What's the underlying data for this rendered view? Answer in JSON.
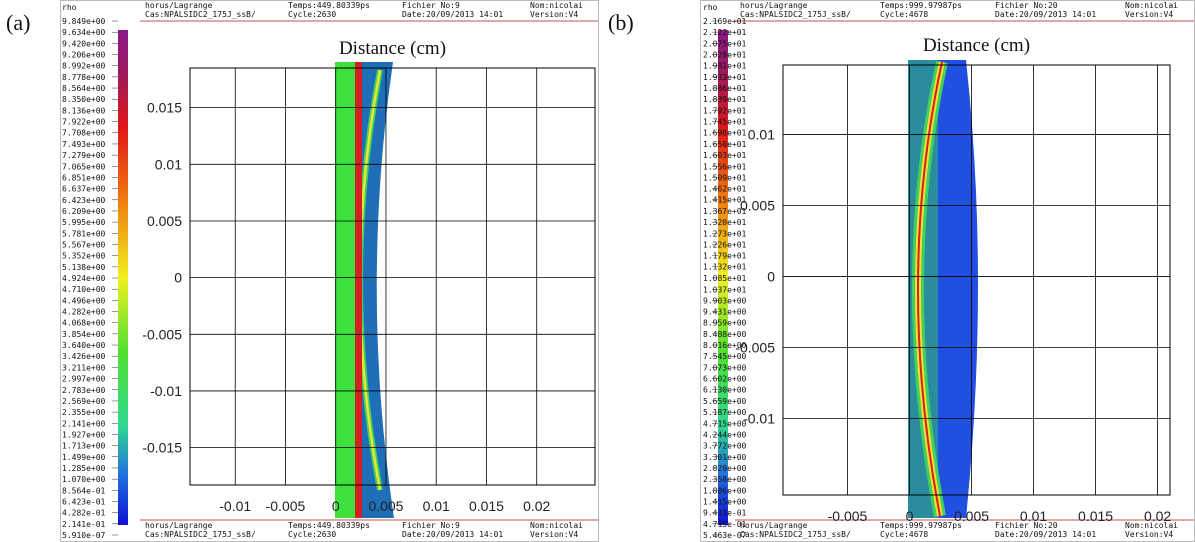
{
  "chart_data": [
    {
      "type": "heatmap",
      "panel_label": "(a)",
      "title": "Distance (cm)",
      "colorbar_title": "rho",
      "colorbar_ticks": [
        {
          "value": 9.849,
          "label": "9.849e+00"
        },
        {
          "value": 9.634,
          "label": "9.634e+00"
        },
        {
          "value": 9.42,
          "label": "9.420e+00"
        },
        {
          "value": 9.206,
          "label": "9.206e+00"
        },
        {
          "value": 8.992,
          "label": "8.992e+00"
        },
        {
          "value": 8.778,
          "label": "8.778e+00"
        },
        {
          "value": 8.564,
          "label": "8.564e+00"
        },
        {
          "value": 8.35,
          "label": "8.350e+00"
        },
        {
          "value": 8.136,
          "label": "8.136e+00"
        },
        {
          "value": 7.922,
          "label": "7.922e+00"
        },
        {
          "value": 7.708,
          "label": "7.708e+00"
        },
        {
          "value": 7.493,
          "label": "7.493e+00"
        },
        {
          "value": 7.279,
          "label": "7.279e+00"
        },
        {
          "value": 7.065,
          "label": "7.065e+00"
        },
        {
          "value": 6.851,
          "label": "6.851e+00"
        },
        {
          "value": 6.637,
          "label": "6.637e+00"
        },
        {
          "value": 6.423,
          "label": "6.423e+00"
        },
        {
          "value": 6.209,
          "label": "6.209e+00"
        },
        {
          "value": 5.995,
          "label": "5.995e+00"
        },
        {
          "value": 5.781,
          "label": "5.781e+00"
        },
        {
          "value": 5.567,
          "label": "5.567e+00"
        },
        {
          "value": 5.352,
          "label": "5.352e+00"
        },
        {
          "value": 5.138,
          "label": "5.138e+00"
        },
        {
          "value": 4.924,
          "label": "4.924e+00"
        },
        {
          "value": 4.71,
          "label": "4.710e+00"
        },
        {
          "value": 4.496,
          "label": "4.496e+00"
        },
        {
          "value": 4.282,
          "label": "4.282e+00"
        },
        {
          "value": 4.068,
          "label": "4.068e+00"
        },
        {
          "value": 3.854,
          "label": "3.854e+00"
        },
        {
          "value": 3.64,
          "label": "3.640e+00"
        },
        {
          "value": 3.426,
          "label": "3.426e+00"
        },
        {
          "value": 3.211,
          "label": "3.211e+00"
        },
        {
          "value": 2.997,
          "label": "2.997e+00"
        },
        {
          "value": 2.783,
          "label": "2.783e+00"
        },
        {
          "value": 2.569,
          "label": "2.569e+00"
        },
        {
          "value": 2.355,
          "label": "2.355e+00"
        },
        {
          "value": 2.141,
          "label": "2.141e+00"
        },
        {
          "value": 1.927,
          "label": "1.927e+00"
        },
        {
          "value": 1.713,
          "label": "1.713e+00"
        },
        {
          "value": 1.499,
          "label": "1.499e+00"
        },
        {
          "value": 1.285,
          "label": "1.285e+00"
        },
        {
          "value": 1.07,
          "label": "1.070e+00"
        },
        {
          "value": 0.8564,
          "label": "8.564e-01"
        },
        {
          "value": 0.6423,
          "label": "6.423e-01"
        },
        {
          "value": 0.4282,
          "label": "4.282e-01"
        },
        {
          "value": 0.2141,
          "label": "2.141e-01"
        },
        {
          "value": 5.91e-07,
          "label": "5.910e-07"
        }
      ],
      "header": [
        "horus/Lagrange",
        "Cas:NPALSIDC2_175J_ssB/",
        "Temps:449.80339ps",
        "Cycle:2630",
        "Fichier No:9",
        "Date:20/09/2013 14:01",
        "Nom:nicolai",
        "Version:V4"
      ],
      "footer": [
        "horus/Lagrange",
        "Cas:NPALSIDC2_175J_ssB/",
        "Temps:449.80339ps",
        "Cycle:2630",
        "Fichier No:9",
        "Date:20/09/2013 14:01",
        "Nom:nicolai",
        "Version:V4"
      ],
      "xlim": [
        -0.0145,
        0.0258
      ],
      "xticks": [
        -0.01,
        -0.005,
        0,
        0.005,
        0.01,
        0.015,
        0.02
      ],
      "ylim": [
        -0.0183,
        0.0185
      ],
      "yticks": [
        0.015,
        0.01,
        0.005,
        0,
        -0.005,
        -0.01,
        -0.015
      ],
      "grid": true
    },
    {
      "type": "heatmap",
      "panel_label": "(b)",
      "title": "Distance (cm)",
      "colorbar_title": "rho",
      "colorbar_ticks": [
        {
          "value": 21.69,
          "label": "2.169e+01"
        },
        {
          "value": 21.22,
          "label": "2.122e+01"
        },
        {
          "value": 20.75,
          "label": "2.075e+01"
        },
        {
          "value": 20.28,
          "label": "2.028e+01"
        },
        {
          "value": 19.81,
          "label": "1.981e+01"
        },
        {
          "value": 19.33,
          "label": "1.933e+01"
        },
        {
          "value": 18.86,
          "label": "1.886e+01"
        },
        {
          "value": 18.39,
          "label": "1.839e+01"
        },
        {
          "value": 17.92,
          "label": "1.792e+01"
        },
        {
          "value": 17.45,
          "label": "1.745e+01"
        },
        {
          "value": 16.98,
          "label": "1.698e+01"
        },
        {
          "value": 16.5,
          "label": "1.650e+01"
        },
        {
          "value": 16.03,
          "label": "1.603e+01"
        },
        {
          "value": 15.56,
          "label": "1.556e+01"
        },
        {
          "value": 15.09,
          "label": "1.509e+01"
        },
        {
          "value": 14.62,
          "label": "1.462e+01"
        },
        {
          "value": 14.15,
          "label": "1.415e+01"
        },
        {
          "value": 13.67,
          "label": "1.367e+01"
        },
        {
          "value": 13.2,
          "label": "1.320e+01"
        },
        {
          "value": 12.73,
          "label": "1.273e+01"
        },
        {
          "value": 12.26,
          "label": "1.226e+01"
        },
        {
          "value": 11.79,
          "label": "1.179e+01"
        },
        {
          "value": 11.32,
          "label": "1.132e+01"
        },
        {
          "value": 10.85,
          "label": "1.085e+01"
        },
        {
          "value": 10.37,
          "label": "1.037e+01"
        },
        {
          "value": 9.903,
          "label": "9.903e+00"
        },
        {
          "value": 9.431,
          "label": "9.431e+00"
        },
        {
          "value": 8.959,
          "label": "8.959e+00"
        },
        {
          "value": 8.488,
          "label": "8.488e+00"
        },
        {
          "value": 8.016,
          "label": "8.016e+00"
        },
        {
          "value": 7.545,
          "label": "7.545e+00"
        },
        {
          "value": 7.073,
          "label": "7.073e+00"
        },
        {
          "value": 6.602,
          "label": "6.602e+00"
        },
        {
          "value": 6.13,
          "label": "6.130e+00"
        },
        {
          "value": 5.659,
          "label": "5.659e+00"
        },
        {
          "value": 5.187,
          "label": "5.187e+00"
        },
        {
          "value": 4.715,
          "label": "4.715e+00"
        },
        {
          "value": 4.244,
          "label": "4.244e+00"
        },
        {
          "value": 3.772,
          "label": "3.772e+00"
        },
        {
          "value": 3.301,
          "label": "3.301e+00"
        },
        {
          "value": 2.829,
          "label": "2.829e+00"
        },
        {
          "value": 2.358,
          "label": "2.358e+00"
        },
        {
          "value": 1.886,
          "label": "1.886e+00"
        },
        {
          "value": 1.415,
          "label": "1.415e+00"
        },
        {
          "value": 0.9431,
          "label": "9.431e-01"
        },
        {
          "value": 0.4715,
          "label": "4.715e-01"
        },
        {
          "value": 5.463e-07,
          "label": "5.463e-07"
        }
      ],
      "header": [
        "horus/Lagrange",
        "Cas:NPALSIDC2_175J_ssB/",
        "Temps:999.97987ps",
        "Cycle:4678",
        "Fichier No:20",
        "Date:20/09/2013 14:01",
        "Nom:nicolai",
        "Version:V4"
      ],
      "footer": [
        "horus/Lagrange",
        "Cas:NPALSIDC2_175J_ssB/",
        "Temps:999.97987ps",
        "Cycle:4678",
        "Fichier No:20",
        "Date:20/09/2013 14:01",
        "Nom:nicolai",
        "Version:V4"
      ],
      "xlim": [
        -0.0102,
        0.021
      ],
      "xticks": [
        -0.005,
        0,
        0.005,
        0.01,
        0.015,
        0.02
      ],
      "ylim": [
        -0.0154,
        0.0149
      ],
      "yticks": [
        0.01,
        0.005,
        0,
        -0.005,
        -0.01
      ],
      "grid": true
    }
  ]
}
